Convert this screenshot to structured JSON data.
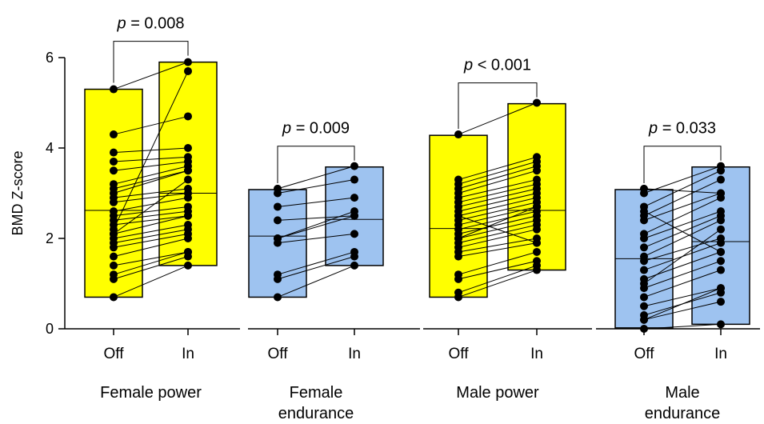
{
  "chart_data": {
    "type": "box",
    "ylabel": "BMD Z-score",
    "ylim": [
      0,
      6
    ],
    "yticks": [
      "0",
      "2",
      "4",
      "6"
    ],
    "colors": {
      "power": "#ffff00",
      "endurance": "#9ec3f0",
      "stroke": "#000000"
    },
    "groups": [
      {
        "name": [
          "Female power"
        ],
        "color": "#ffff00",
        "conditions": [
          "Off",
          "In"
        ],
        "p_prefix": "p",
        "p_text": " = 0.008",
        "off": {
          "min": 0.7,
          "max": 5.3,
          "median": 2.62
        },
        "in": {
          "min": 1.4,
          "max": 5.9,
          "median": 3.0
        },
        "pairs": [
          [
            0.7,
            1.4
          ],
          [
            1.1,
            1.6
          ],
          [
            1.2,
            1.7
          ],
          [
            1.4,
            1.7
          ],
          [
            1.6,
            2.0
          ],
          [
            1.8,
            2.1
          ],
          [
            1.9,
            2.2
          ],
          [
            2.0,
            2.3
          ],
          [
            2.1,
            2.5
          ],
          [
            2.3,
            2.5
          ],
          [
            2.4,
            2.6
          ],
          [
            2.5,
            2.7
          ],
          [
            2.6,
            2.9
          ],
          [
            2.8,
            3.0
          ],
          [
            2.9,
            3.1
          ],
          [
            3.0,
            3.5
          ],
          [
            3.1,
            3.5
          ],
          [
            3.2,
            3.6
          ],
          [
            3.5,
            3.7
          ],
          [
            3.7,
            3.8
          ],
          [
            3.9,
            4.0
          ],
          [
            4.3,
            4.7
          ],
          [
            5.3,
            5.9
          ],
          [
            2.2,
            5.7
          ],
          [
            2.1,
            3.3
          ]
        ]
      },
      {
        "name": [
          "Female",
          "endurance"
        ],
        "color": "#9ec3f0",
        "conditions": [
          "Off",
          "In"
        ],
        "p_prefix": "p",
        "p_text": " = 0.009",
        "off": {
          "min": 0.7,
          "max": 3.08,
          "median": 2.05
        },
        "in": {
          "min": 1.4,
          "max": 3.58,
          "median": 2.42
        },
        "pairs": [
          [
            0.7,
            1.4
          ],
          [
            1.1,
            1.6
          ],
          [
            1.2,
            1.7
          ],
          [
            1.9,
            2.1
          ],
          [
            2.0,
            2.5
          ],
          [
            2.0,
            2.6
          ],
          [
            2.4,
            2.5
          ],
          [
            2.7,
            2.9
          ],
          [
            3.0,
            3.3
          ],
          [
            3.1,
            3.6
          ]
        ]
      },
      {
        "name": [
          "Male power"
        ],
        "color": "#ffff00",
        "conditions": [
          "Off",
          "In"
        ],
        "p_prefix": "p",
        "p_text": " < 0.001",
        "off": {
          "min": 0.7,
          "max": 4.28,
          "median": 2.22
        },
        "in": {
          "min": 1.3,
          "max": 4.98,
          "median": 2.62
        },
        "pairs": [
          [
            0.7,
            1.3
          ],
          [
            0.8,
            1.4
          ],
          [
            1.1,
            1.5
          ],
          [
            1.2,
            1.7
          ],
          [
            1.6,
            1.9
          ],
          [
            1.7,
            2.0
          ],
          [
            1.8,
            2.2
          ],
          [
            1.9,
            2.3
          ],
          [
            2.0,
            2.4
          ],
          [
            2.1,
            2.5
          ],
          [
            2.2,
            2.6
          ],
          [
            2.3,
            2.7
          ],
          [
            2.4,
            2.8
          ],
          [
            2.5,
            2.9
          ],
          [
            2.6,
            3.0
          ],
          [
            2.7,
            3.1
          ],
          [
            2.8,
            3.2
          ],
          [
            2.9,
            3.3
          ],
          [
            3.0,
            3.5
          ],
          [
            3.1,
            3.6
          ],
          [
            3.2,
            3.7
          ],
          [
            3.3,
            3.8
          ],
          [
            4.3,
            5.0
          ],
          [
            2.5,
            1.9
          ],
          [
            2.0,
            2.7
          ]
        ]
      },
      {
        "name": [
          "Male",
          "endurance"
        ],
        "color": "#9ec3f0",
        "conditions": [
          "Off",
          "In"
        ],
        "p_prefix": "p",
        "p_text": " = 0.033",
        "off": {
          "min": 0.02,
          "max": 3.08,
          "median": 1.55
        },
        "in": {
          "min": 0.1,
          "max": 3.58,
          "median": 1.93
        },
        "pairs": [
          [
            0.0,
            0.1
          ],
          [
            0.2,
            0.6
          ],
          [
            0.3,
            0.8
          ],
          [
            0.5,
            0.9
          ],
          [
            0.7,
            1.3
          ],
          [
            0.9,
            1.5
          ],
          [
            1.1,
            1.7
          ],
          [
            1.3,
            1.9
          ],
          [
            1.5,
            2.0
          ],
          [
            1.6,
            2.4
          ],
          [
            1.8,
            2.5
          ],
          [
            2.0,
            2.6
          ],
          [
            2.1,
            2.9
          ],
          [
            2.4,
            3.0
          ],
          [
            2.5,
            3.3
          ],
          [
            2.7,
            3.5
          ],
          [
            3.0,
            3.6
          ],
          [
            3.1,
            3.0
          ],
          [
            1.0,
            2.2
          ],
          [
            0.2,
            0.9
          ],
          [
            2.6,
            1.7
          ]
        ]
      }
    ]
  }
}
